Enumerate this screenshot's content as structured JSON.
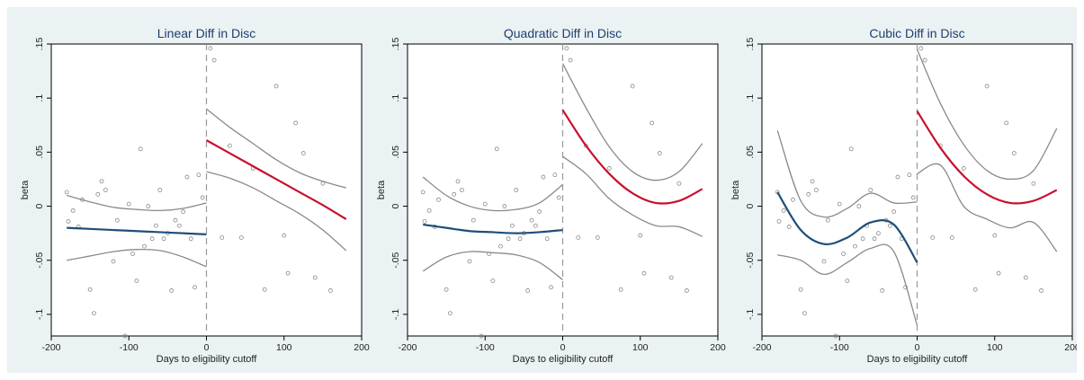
{
  "chart_data": [
    {
      "type": "scatter",
      "title": "Linear Diff in Disc",
      "xlabel": "Days to eligibility cutoff",
      "ylabel": "beta",
      "xlim": [
        -200,
        200
      ],
      "ylim": [
        -0.12,
        0.15
      ],
      "xticks": [
        -200,
        -100,
        0,
        100,
        200
      ],
      "xtick_labels": [
        "-200",
        "-100",
        "0",
        "100",
        "200"
      ],
      "yticks": [
        -0.1,
        -0.05,
        0,
        0.05,
        0.1,
        0.15
      ],
      "ytick_labels": [
        "-.1",
        "-.05",
        "0",
        ".05",
        ".1",
        ".15"
      ],
      "cutoff": 0,
      "grid": false,
      "fit_left": {
        "x": [
          -180,
          -150,
          -120,
          -90,
          -60,
          -30,
          0
        ],
        "y": [
          -0.02,
          -0.021,
          -0.022,
          -0.023,
          -0.024,
          -0.025,
          -0.026
        ]
      },
      "ci_left_upper": {
        "x": [
          -180,
          -150,
          -120,
          -90,
          -60,
          -30,
          0
        ],
        "y": [
          0.01,
          0.004,
          -0.001,
          -0.003,
          -0.004,
          -0.002,
          0.003
        ]
      },
      "ci_left_lower": {
        "x": [
          -180,
          -150,
          -120,
          -90,
          -60,
          -30,
          0
        ],
        "y": [
          -0.05,
          -0.046,
          -0.042,
          -0.04,
          -0.041,
          -0.047,
          -0.056
        ]
      },
      "fit_right": {
        "x": [
          0,
          30,
          60,
          90,
          120,
          150,
          180
        ],
        "y": [
          0.061,
          0.049,
          0.037,
          0.025,
          0.013,
          0.001,
          -0.012
        ]
      },
      "ci_right_upper": {
        "x": [
          0,
          30,
          60,
          90,
          120,
          150,
          180
        ],
        "y": [
          0.09,
          0.073,
          0.058,
          0.043,
          0.031,
          0.023,
          0.017
        ]
      },
      "ci_right_lower": {
        "x": [
          0,
          30,
          60,
          90,
          120,
          150,
          180
        ],
        "y": [
          0.032,
          0.026,
          0.017,
          0.005,
          -0.007,
          -0.022,
          -0.041
        ]
      },
      "points": {
        "x": [
          -180,
          -178,
          -172,
          -165,
          -160,
          -150,
          -145,
          -140,
          -135,
          -130,
          -120,
          -115,
          -105,
          -100,
          -95,
          -90,
          -85,
          -80,
          -75,
          -70,
          -65,
          -60,
          -55,
          -50,
          -45,
          -40,
          -35,
          -30,
          -25,
          -20,
          -15,
          -10,
          -5,
          5,
          10,
          20,
          30,
          45,
          60,
          75,
          90,
          100,
          105,
          115,
          125,
          140,
          150,
          160
        ],
        "y": [
          0.013,
          -0.014,
          -0.004,
          -0.019,
          0.006,
          -0.077,
          -0.099,
          0.011,
          0.023,
          0.015,
          -0.051,
          -0.013,
          -0.12,
          0.002,
          -0.044,
          -0.069,
          0.053,
          -0.037,
          0.0,
          -0.03,
          -0.018,
          0.015,
          -0.03,
          -0.025,
          -0.078,
          -0.013,
          -0.018,
          -0.005,
          0.027,
          -0.03,
          -0.075,
          0.029,
          0.008,
          0.146,
          0.135,
          -0.029,
          0.056,
          -0.029,
          0.035,
          -0.077,
          0.111,
          -0.027,
          -0.062,
          0.077,
          0.049,
          -0.066,
          0.021,
          -0.078
        ]
      }
    },
    {
      "type": "scatter",
      "title": "Quadratic Diff in Disc",
      "xlabel": "Days to eligibility cutoff",
      "ylabel": "beta",
      "xlim": [
        -200,
        200
      ],
      "ylim": [
        -0.12,
        0.15
      ],
      "xticks": [
        -200,
        -100,
        0,
        100,
        200
      ],
      "xtick_labels": [
        "-200",
        "-100",
        "0",
        "100",
        "200"
      ],
      "yticks": [
        -0.1,
        -0.05,
        0,
        0.05,
        0.1,
        0.15
      ],
      "ytick_labels": [
        "-.1",
        "-.05",
        "0",
        ".05",
        ".1",
        ".15"
      ],
      "cutoff": 0,
      "grid": false,
      "fit_left": {
        "x": [
          -180,
          -150,
          -120,
          -90,
          -60,
          -30,
          0
        ],
        "y": [
          -0.017,
          -0.02,
          -0.023,
          -0.024,
          -0.025,
          -0.024,
          -0.022
        ]
      },
      "ci_left_upper": {
        "x": [
          -180,
          -150,
          -120,
          -90,
          -60,
          -30,
          0
        ],
        "y": [
          0.027,
          0.01,
          0.0,
          -0.004,
          -0.003,
          0.003,
          0.02
        ]
      },
      "ci_left_lower": {
        "x": [
          -180,
          -150,
          -120,
          -90,
          -60,
          -30,
          0
        ],
        "y": [
          -0.06,
          -0.047,
          -0.042,
          -0.043,
          -0.045,
          -0.052,
          -0.068
        ]
      },
      "fit_right": {
        "x": [
          0,
          30,
          60,
          90,
          120,
          150,
          180
        ],
        "y": [
          0.089,
          0.056,
          0.03,
          0.012,
          0.003,
          0.005,
          0.016
        ]
      },
      "ci_right_upper": {
        "x": [
          0,
          30,
          60,
          90,
          120,
          150,
          180
        ],
        "y": [
          0.132,
          0.091,
          0.055,
          0.032,
          0.024,
          0.032,
          0.058
        ]
      },
      "ci_right_lower": {
        "x": [
          0,
          30,
          60,
          90,
          120,
          150,
          180
        ],
        "y": [
          0.046,
          0.03,
          0.007,
          -0.008,
          -0.018,
          -0.019,
          -0.028
        ]
      },
      "points": {
        "x": [
          -180,
          -178,
          -172,
          -165,
          -160,
          -150,
          -145,
          -140,
          -135,
          -130,
          -120,
          -115,
          -105,
          -100,
          -95,
          -90,
          -85,
          -80,
          -75,
          -70,
          -65,
          -60,
          -55,
          -50,
          -45,
          -40,
          -35,
          -30,
          -25,
          -20,
          -15,
          -10,
          -5,
          5,
          10,
          20,
          30,
          45,
          60,
          75,
          90,
          100,
          105,
          115,
          125,
          140,
          150,
          160
        ],
        "y": [
          0.013,
          -0.014,
          -0.004,
          -0.019,
          0.006,
          -0.077,
          -0.099,
          0.011,
          0.023,
          0.015,
          -0.051,
          -0.013,
          -0.12,
          0.002,
          -0.044,
          -0.069,
          0.053,
          -0.037,
          0.0,
          -0.03,
          -0.018,
          0.015,
          -0.03,
          -0.025,
          -0.078,
          -0.013,
          -0.018,
          -0.005,
          0.027,
          -0.03,
          -0.075,
          0.029,
          0.008,
          0.146,
          0.135,
          -0.029,
          0.056,
          -0.029,
          0.035,
          -0.077,
          0.111,
          -0.027,
          -0.062,
          0.077,
          0.049,
          -0.066,
          0.021,
          -0.078
        ]
      }
    },
    {
      "type": "scatter",
      "title": "Cubic Diff in Disc",
      "xlabel": "Days to eligibility cutoff",
      "ylabel": "beta",
      "xlim": [
        -200,
        200
      ],
      "ylim": [
        -0.12,
        0.15
      ],
      "xticks": [
        -200,
        -100,
        0,
        100,
        200
      ],
      "xtick_labels": [
        "-200",
        "-100",
        "0",
        "100",
        "200"
      ],
      "yticks": [
        -0.1,
        -0.05,
        0,
        0.05,
        0.1,
        0.15
      ],
      "ytick_labels": [
        "-.1",
        "-.05",
        "0",
        ".05",
        ".1",
        ".15"
      ],
      "cutoff": 0,
      "grid": false,
      "fit_left": {
        "x": [
          -180,
          -150,
          -120,
          -90,
          -60,
          -30,
          0
        ],
        "y": [
          0.013,
          -0.022,
          -0.035,
          -0.029,
          -0.015,
          -0.017,
          -0.052
        ]
      },
      "ci_left_upper": {
        "x": [
          -180,
          -150,
          -120,
          -90,
          -60,
          -30,
          0
        ],
        "y": [
          0.07,
          0.005,
          -0.01,
          -0.002,
          0.012,
          0.003,
          0.004
        ]
      },
      "ci_left_lower": {
        "x": [
          -180,
          -150,
          -120,
          -90,
          -60,
          -30,
          0
        ],
        "y": [
          -0.045,
          -0.05,
          -0.063,
          -0.052,
          -0.039,
          -0.042,
          -0.11
        ]
      },
      "fit_right": {
        "x": [
          0,
          30,
          60,
          90,
          120,
          150,
          180
        ],
        "y": [
          0.088,
          0.054,
          0.028,
          0.011,
          0.003,
          0.005,
          0.015
        ]
      },
      "ci_right_upper": {
        "x": [
          0,
          30,
          60,
          90,
          120,
          150,
          180
        ],
        "y": [
          0.145,
          0.095,
          0.057,
          0.033,
          0.025,
          0.033,
          0.072
        ]
      },
      "ci_right_lower": {
        "x": [
          0,
          30,
          60,
          90,
          120,
          150,
          180
        ],
        "y": [
          0.03,
          0.038,
          0.0,
          -0.012,
          -0.02,
          -0.015,
          -0.042
        ]
      },
      "points": {
        "x": [
          -180,
          -178,
          -172,
          -165,
          -160,
          -150,
          -145,
          -140,
          -135,
          -130,
          -120,
          -115,
          -105,
          -100,
          -95,
          -90,
          -85,
          -80,
          -75,
          -70,
          -65,
          -60,
          -55,
          -50,
          -45,
          -40,
          -35,
          -30,
          -25,
          -20,
          -15,
          -10,
          -5,
          5,
          10,
          20,
          30,
          45,
          60,
          75,
          90,
          100,
          105,
          115,
          125,
          140,
          150,
          160
        ],
        "y": [
          0.013,
          -0.014,
          -0.004,
          -0.019,
          0.006,
          -0.077,
          -0.099,
          0.011,
          0.023,
          0.015,
          -0.051,
          -0.013,
          -0.12,
          0.002,
          -0.044,
          -0.069,
          0.053,
          -0.037,
          0.0,
          -0.03,
          -0.018,
          0.015,
          -0.03,
          -0.025,
          -0.078,
          -0.013,
          -0.018,
          -0.005,
          0.027,
          -0.03,
          -0.075,
          0.029,
          0.008,
          0.146,
          0.135,
          -0.029,
          0.056,
          -0.029,
          0.035,
          -0.077,
          0.111,
          -0.027,
          -0.062,
          0.077,
          0.049,
          -0.066,
          0.021,
          -0.078
        ]
      }
    }
  ],
  "colors": {
    "background": "#eaf2f3",
    "plot_area": "#ffffff",
    "fit_left": "#1f4e79",
    "fit_right": "#c8102e",
    "ci": "#8a8a8a",
    "points": "#888888",
    "cutoff_line": "#999999",
    "title": "#1f3e6e"
  }
}
